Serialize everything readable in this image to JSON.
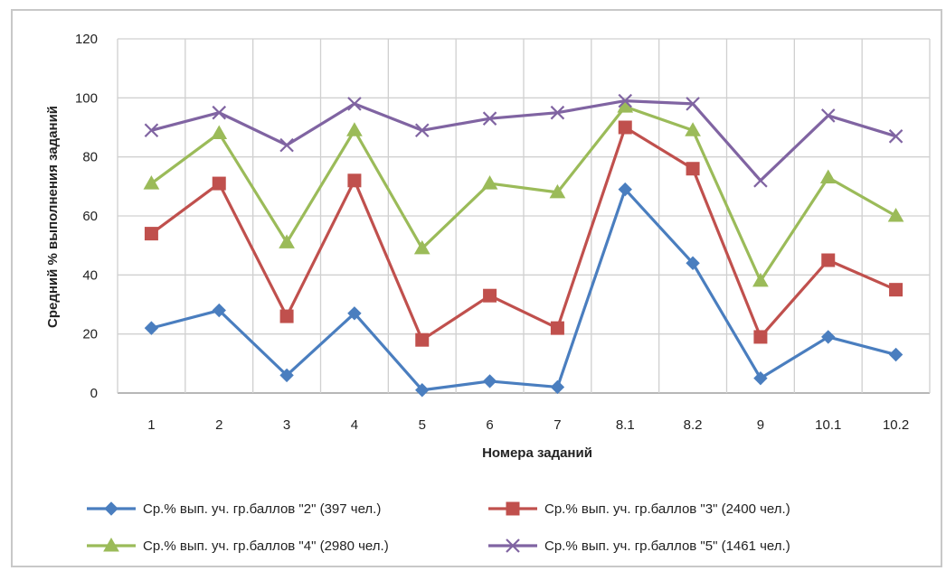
{
  "chart_data": {
    "type": "line",
    "title": "",
    "xlabel": "Номера заданий",
    "ylabel": "Средний % выполнения заданий",
    "categories": [
      "1",
      "2",
      "3",
      "4",
      "5",
      "6",
      "7",
      "8.1",
      "8.2",
      "9",
      "10.1",
      "10.2"
    ],
    "ylim": [
      0,
      120
    ],
    "yticks": [
      "0",
      "20",
      "40",
      "60",
      "80",
      "100",
      "120"
    ],
    "grid": true,
    "legend_position": "bottom",
    "series": [
      {
        "name": "Ср.% вып. уч. гр.баллов \"2\" (397 чел.)",
        "marker": "diamond",
        "color": "#4a7ebf",
        "values": [
          22,
          28,
          6,
          27,
          1,
          4,
          2,
          69,
          44,
          5,
          19,
          13
        ]
      },
      {
        "name": "Ср.% вып. уч. гр.баллов \"3\" (2400 чел.)",
        "marker": "square",
        "color": "#c0504d",
        "values": [
          54,
          71,
          26,
          72,
          18,
          33,
          22,
          90,
          76,
          19,
          45,
          35
        ]
      },
      {
        "name": "Ср.% вып. уч. гр.баллов \"4\" (2980 чел.)",
        "marker": "triangle",
        "color": "#9bbb59",
        "values": [
          71,
          88,
          51,
          89,
          49,
          71,
          68,
          97,
          89,
          38,
          73,
          60
        ]
      },
      {
        "name": "Ср.% вып. уч. гр.баллов \"5\" (1461 чел.)",
        "marker": "x",
        "color": "#8064a2",
        "values": [
          89,
          95,
          84,
          98,
          89,
          93,
          95,
          99,
          98,
          72,
          94,
          87
        ]
      }
    ]
  }
}
